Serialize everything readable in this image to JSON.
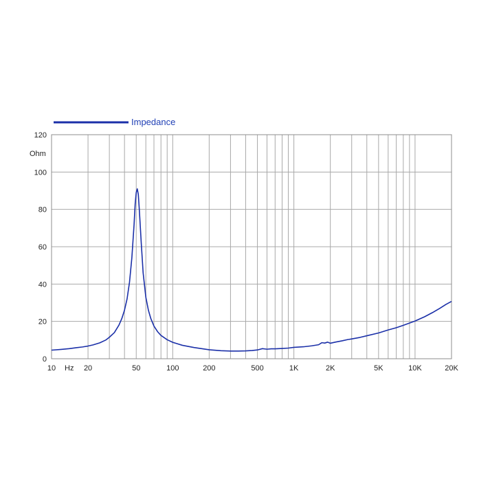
{
  "chart_data": {
    "type": "line",
    "x_scale": "log",
    "grid": true,
    "xlim": [
      10,
      20000
    ],
    "ylim": [
      0,
      120
    ],
    "ylabel": "Ohm",
    "x_unit_label": "Hz",
    "x_tick_labels": [
      {
        "value": 10,
        "label": "10"
      },
      {
        "value": 20,
        "label": "20"
      },
      {
        "value": 50,
        "label": "50"
      },
      {
        "value": 100,
        "label": "100"
      },
      {
        "value": 200,
        "label": "200"
      },
      {
        "value": 500,
        "label": "500"
      },
      {
        "value": 1000,
        "label": "1K"
      },
      {
        "value": 2000,
        "label": "2K"
      },
      {
        "value": 5000,
        "label": "5K"
      },
      {
        "value": 10000,
        "label": "10K"
      },
      {
        "value": 20000,
        "label": "20K"
      }
    ],
    "y_ticks": [
      0,
      20,
      40,
      60,
      80,
      100,
      120
    ],
    "legend_position": "top-left",
    "series": [
      {
        "name": "Impedance",
        "color": "#1a2fa8",
        "points": [
          [
            10,
            4.6
          ],
          [
            12,
            5.0
          ],
          [
            14,
            5.4
          ],
          [
            16,
            5.9
          ],
          [
            18,
            6.3
          ],
          [
            20,
            6.8
          ],
          [
            22,
            7.4
          ],
          [
            25,
            8.5
          ],
          [
            28,
            10.0
          ],
          [
            30,
            11.5
          ],
          [
            33,
            14.0
          ],
          [
            36,
            18.0
          ],
          [
            38,
            21.5
          ],
          [
            40,
            26.0
          ],
          [
            42,
            32.0
          ],
          [
            44,
            41.0
          ],
          [
            46,
            54.0
          ],
          [
            48,
            72.0
          ],
          [
            49,
            83.0
          ],
          [
            50,
            89.0
          ],
          [
            51,
            91.0
          ],
          [
            52,
            88.0
          ],
          [
            53,
            80.0
          ],
          [
            55,
            62.0
          ],
          [
            57,
            46.0
          ],
          [
            60,
            33.0
          ],
          [
            63,
            26.0
          ],
          [
            66,
            21.5
          ],
          [
            70,
            17.5
          ],
          [
            75,
            14.5
          ],
          [
            80,
            12.5
          ],
          [
            90,
            10.2
          ],
          [
            100,
            8.8
          ],
          [
            120,
            7.2
          ],
          [
            150,
            6.0
          ],
          [
            200,
            4.8
          ],
          [
            250,
            4.3
          ],
          [
            300,
            4.1
          ],
          [
            350,
            4.1
          ],
          [
            400,
            4.2
          ],
          [
            450,
            4.4
          ],
          [
            500,
            4.7
          ],
          [
            550,
            5.4
          ],
          [
            600,
            5.1
          ],
          [
            650,
            5.3
          ],
          [
            700,
            5.3
          ],
          [
            800,
            5.5
          ],
          [
            900,
            5.7
          ],
          [
            1000,
            6.1
          ],
          [
            1200,
            6.4
          ],
          [
            1400,
            6.9
          ],
          [
            1600,
            7.5
          ],
          [
            1700,
            8.6
          ],
          [
            1800,
            8.4
          ],
          [
            1900,
            8.9
          ],
          [
            2000,
            8.3
          ],
          [
            2200,
            8.9
          ],
          [
            2500,
            9.6
          ],
          [
            2800,
            10.3
          ],
          [
            3000,
            10.6
          ],
          [
            3500,
            11.4
          ],
          [
            4000,
            12.3
          ],
          [
            5000,
            13.8
          ],
          [
            6000,
            15.4
          ],
          [
            7000,
            16.6
          ],
          [
            8000,
            17.9
          ],
          [
            10000,
            20.2
          ],
          [
            12000,
            22.5
          ],
          [
            14000,
            24.8
          ],
          [
            16000,
            27.0
          ],
          [
            18000,
            29.1
          ],
          [
            20000,
            30.7
          ]
        ]
      }
    ]
  }
}
